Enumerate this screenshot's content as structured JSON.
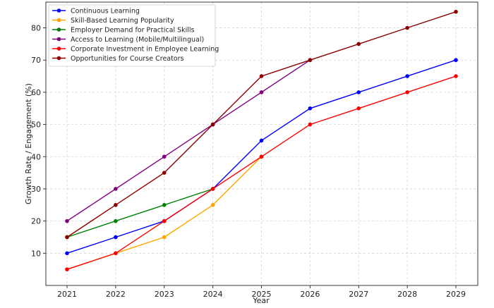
{
  "chart_data": {
    "type": "line",
    "title": "",
    "xlabel": "Year",
    "ylabel": "Growth Rate / Engagement (%)",
    "x": [
      2021,
      2022,
      2023,
      2024,
      2025,
      2026,
      2027,
      2028,
      2029
    ],
    "ylim": [
      0,
      88
    ],
    "yticks": [
      10,
      20,
      30,
      40,
      50,
      60,
      70,
      80
    ],
    "grid": true,
    "legend_position": "top-left",
    "series": [
      {
        "name": "Continuous Learning",
        "color": "#0000ff",
        "x": [
          2021,
          2022,
          2023,
          2024,
          2025,
          2026,
          2027,
          2028,
          2029
        ],
        "values": [
          10,
          15,
          20,
          30,
          45,
          55,
          60,
          65,
          70
        ]
      },
      {
        "name": "Skill-Based Learning Popularity",
        "color": "#ffa500",
        "x": [
          2021,
          2022,
          2023,
          2024,
          2025
        ],
        "values": [
          5,
          10,
          15,
          25,
          40
        ]
      },
      {
        "name": "Employer Demand for Practical Skills",
        "color": "#008000",
        "x": [
          2021,
          2022,
          2023,
          2024
        ],
        "values": [
          15,
          20,
          25,
          30
        ]
      },
      {
        "name": "Access to Learning (Mobile/Multilingual)",
        "color": "#800080",
        "x": [
          2021,
          2022,
          2023,
          2024,
          2025,
          2026
        ],
        "values": [
          20,
          30,
          40,
          50,
          60,
          70
        ]
      },
      {
        "name": "Corporate Investment in Employee Learning",
        "color": "#ff0000",
        "x": [
          2021,
          2022,
          2023,
          2024,
          2025,
          2026,
          2027,
          2028,
          2029
        ],
        "values": [
          5,
          10,
          20,
          30,
          40,
          50,
          55,
          60,
          65
        ]
      },
      {
        "name": "Opportunities for Course Creators",
        "color": "#8b0000",
        "x": [
          2021,
          2022,
          2023,
          2024,
          2025,
          2026,
          2027,
          2028,
          2029
        ],
        "values": [
          15,
          25,
          35,
          50,
          65,
          70,
          75,
          80,
          85
        ]
      }
    ]
  }
}
